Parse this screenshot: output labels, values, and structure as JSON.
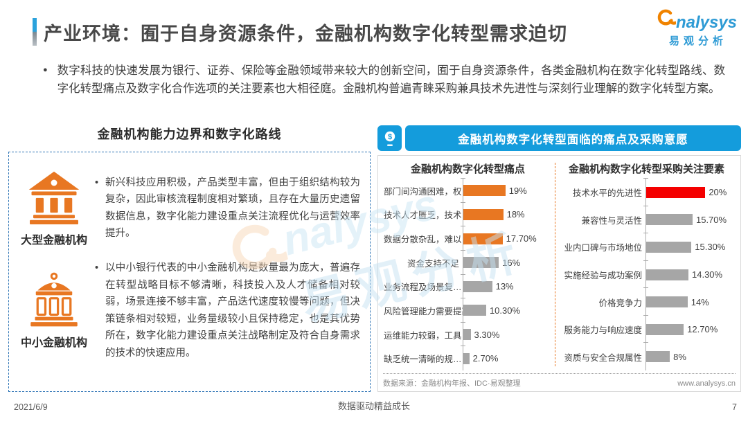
{
  "header": {
    "title": "产业环境：囿于自身资源条件，金融机构数字化转型需求迫切"
  },
  "logo": {
    "brand_icon": "analysys-swirl-icon",
    "brand": "nalysys",
    "brand_cn": "易观分析"
  },
  "intro": {
    "bullet": "●",
    "text": "数字科技的快速发展为银行、证券、保险等金融领域带来较大的创新空间，囿于自身资源条件，各类金融机构在数字化转型路线、数字化转型痛点及数字化合作选项的关注要素也大相径庭。金融机构普遍青睐采购兼具技术先进性与深刻行业理解的数字化转型方案。"
  },
  "left_section": {
    "title": "金融机构能力边界和数字化路线",
    "items": [
      {
        "icon": "bank-classic-icon",
        "label": "大型金融机构",
        "bullet": "•",
        "text": "新兴科技应用积极，产品类型丰富，但由于组织结构较为复杂，因此审核流程制度相对繁琐，且存在大量历史遗留数据信息，数字化能力建设重点关注流程优化与运营效率提升。"
      },
      {
        "icon": "bank-dome-icon",
        "label": "中小金融机构",
        "bullet": "•",
        "text": "以中小银行代表的中小金融机构是数量最为庞大，普遍存在转型战略目标不够清晰，科技投入及人才储备相对较弱，场景连接不够丰富，产品迭代速度较慢等问题，但决策链条相对较短，业务量级较小且保持稳定，也是其优势所在，数字化能力建设重点关注战略制定及符合自身需求的技术的快速应用。"
      }
    ]
  },
  "right_section": {
    "header_icon": "dollar-device-icon",
    "header": "金融机构数字化转型面临的痛点及采购意愿",
    "source_note": "数据来源：金融机构年报、IDC·易观整理",
    "website": "www.analysys.cn"
  },
  "chart_data": [
    {
      "type": "bar",
      "orientation": "horizontal",
      "title": "金融机构数字化转型痛点",
      "categories": [
        "部门间沟通困难，权…",
        "技术人才匮乏，技术…",
        "数据分散杂乱，难以…",
        "资金支持不足",
        "业务流程及场景复…",
        "风险管理能力需要提高",
        "运维能力较弱，工具…",
        "缺乏统一清晰的规…"
      ],
      "values": [
        19,
        18,
        17.7,
        16,
        13,
        10.3,
        3.3,
        2.7
      ],
      "labels": [
        "19%",
        "18%",
        "17.70%",
        "16%",
        "13%",
        "10.30%",
        "3.30%",
        "2.70%"
      ],
      "colors": [
        "#E87722",
        "#E87722",
        "#E87722",
        "#A6A6A6",
        "#A6A6A6",
        "#A6A6A6",
        "#A6A6A6",
        "#A6A6A6"
      ],
      "xlim": [
        0,
        40
      ],
      "grid": false,
      "legend": false
    },
    {
      "type": "bar",
      "orientation": "horizontal",
      "title": "金融机构数字化转型采购关注要素",
      "categories": [
        "技术水平的先进性",
        "兼容性与灵活性",
        "业内口碑与市场地位",
        "实施经验与成功案例",
        "价格竞争力",
        "服务能力与响应速度",
        "资质与安全合规属性"
      ],
      "values": [
        20,
        15.7,
        15.3,
        14.3,
        14,
        12.7,
        8
      ],
      "labels": [
        "20%",
        "15.70%",
        "15.30%",
        "14.30%",
        "14%",
        "12.70%",
        "8%"
      ],
      "colors": [
        "#F40000",
        "#A6A6A6",
        "#A6A6A6",
        "#A6A6A6",
        "#A6A6A6",
        "#A6A6A6",
        "#A6A6A6"
      ],
      "xlim": [
        0,
        30
      ],
      "grid": false,
      "legend": false
    }
  ],
  "watermark": {
    "brand": "nalysys",
    "brand_cn": "易观分析"
  },
  "footer": {
    "date": "2021/6/9",
    "slogan": "数据驱动精益成长",
    "page_number": "7"
  },
  "colors": {
    "accent_blue": "#149CDC",
    "border_blue_dashed": "#2E74B5",
    "orange": "#E87722",
    "red": "#F40000",
    "gray_bar": "#A6A6A6",
    "title_text": "#484848"
  }
}
